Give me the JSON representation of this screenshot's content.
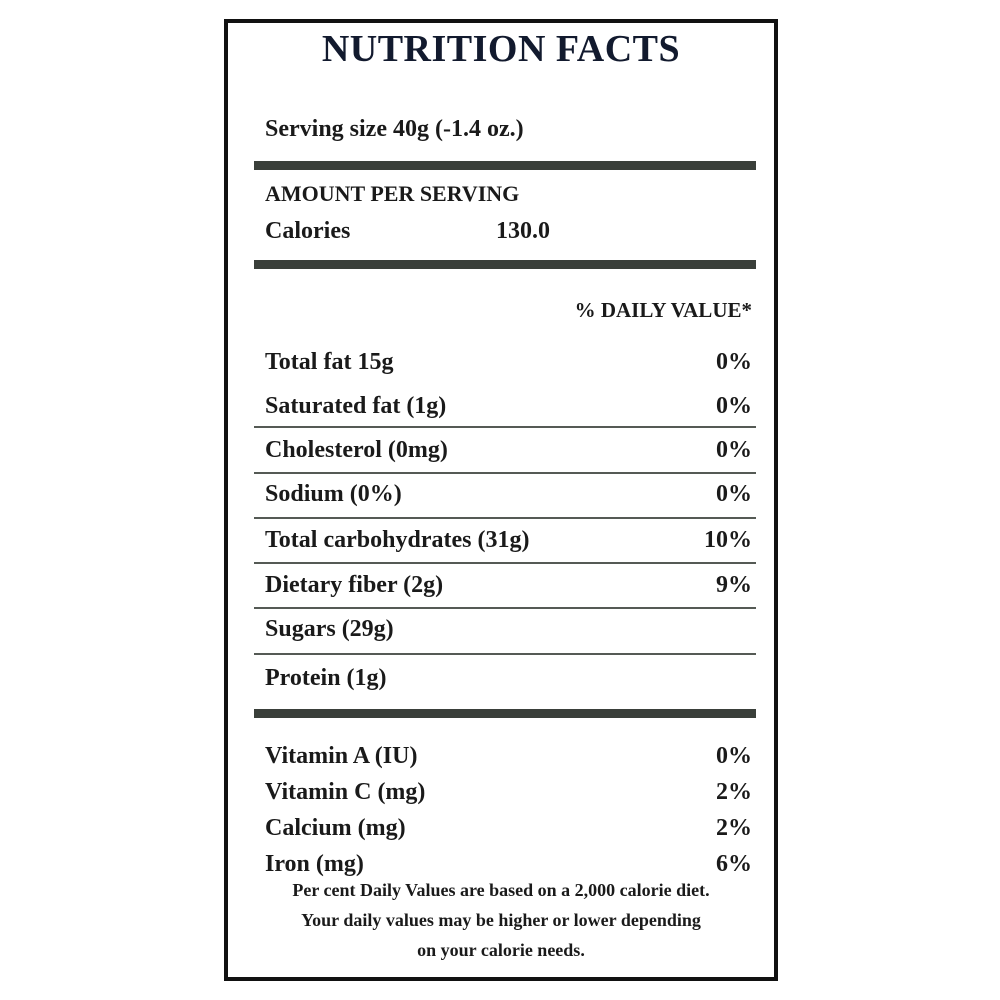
{
  "title": "NUTRITION FACTS",
  "serving_size": "Serving size 40g (-1.4 oz.)",
  "amount_per_serving": "AMOUNT PER SERVING",
  "calories_label": "Calories",
  "calories_value": "130.0",
  "daily_value_header": "% DAILY VALUE*",
  "nutrients": [
    {
      "name": "Total fat 15g",
      "dv": "0%"
    },
    {
      "name": "Saturated fat (1g)",
      "dv": "0%"
    },
    {
      "name": "Cholesterol (0mg)",
      "dv": "0%"
    },
    {
      "name": "Sodium (0%)",
      "dv": "0%"
    },
    {
      "name": "Total carbohydrates (31g)",
      "dv": "10%"
    },
    {
      "name": "Dietary fiber (2g)",
      "dv": "9%"
    },
    {
      "name": "Sugars (29g)",
      "dv": ""
    },
    {
      "name": "Protein (1g)",
      "dv": ""
    }
  ],
  "vitamins": [
    {
      "name": "Vitamin A (IU)",
      "dv": "0%"
    },
    {
      "name": "Vitamin C (mg)",
      "dv": "2%"
    },
    {
      "name": "Calcium (mg)",
      "dv": "2%"
    },
    {
      "name": "Iron (mg)",
      "dv": "6%"
    }
  ],
  "footnote": {
    "line1": "Per cent Daily Values are based on a 2,000 calorie diet.",
    "line2": "Your daily values may be higher or lower depending",
    "line3": "on your calorie needs."
  }
}
